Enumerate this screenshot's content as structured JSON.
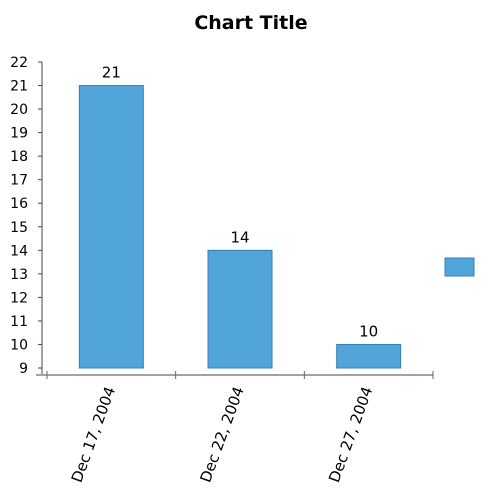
{
  "chart_data": {
    "type": "bar",
    "title": "Chart Title",
    "categories": [
      "Dec 17, 2004",
      "Dec 22, 2004",
      "Dec 27, 2004"
    ],
    "series": [
      {
        "values": [
          21,
          14,
          10
        ],
        "color": "#52a5db"
      }
    ],
    "data_labels": [
      "21",
      "14",
      "10"
    ],
    "ylim": [
      9,
      22
    ],
    "yticks": [
      "9",
      "10",
      "11",
      "12",
      "13",
      "14",
      "15",
      "16",
      "17",
      "18",
      "19",
      "20",
      "21",
      "22"
    ],
    "xlabel": "",
    "ylabel": "",
    "grid": false,
    "legend": {
      "position": "right",
      "swatch_color": "#52a5db",
      "label": ""
    }
  }
}
